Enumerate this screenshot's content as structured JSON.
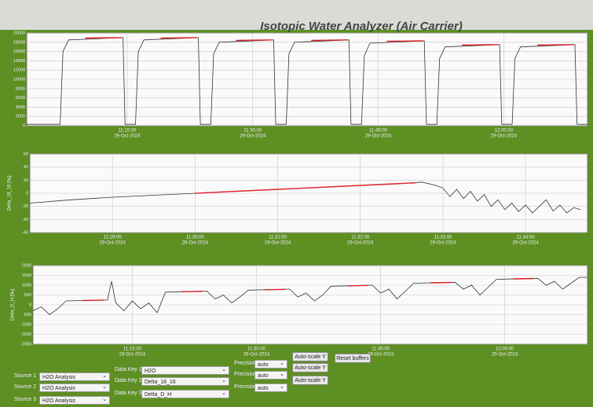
{
  "title": "Isotopic Water Analyzer (Air Carrier)",
  "chart_data": [
    {
      "type": "line",
      "ylim": [
        0,
        20000
      ],
      "yticks": [
        0,
        2000,
        4000,
        6000,
        8000,
        10000,
        12000,
        14000,
        16000,
        18000,
        20000
      ],
      "xlim": [
        "11:03:00",
        "12:10:00"
      ],
      "xticks": [
        "11:15:00",
        "11:30:00",
        "11:45:00",
        "12:00:00"
      ],
      "xtick_dates": [
        "29-Oct-2024",
        "29-Oct-2024",
        "29-Oct-2024",
        "29-Oct-2024"
      ],
      "grid": true,
      "series": [
        {
          "color": "#333333",
          "x": [
            "11:03:00",
            "11:07:00",
            "11:07:20",
            "11:08:00",
            "11:14:30",
            "11:14:45",
            "11:16:00",
            "11:16:20",
            "11:17:00",
            "11:23:30",
            "11:23:45",
            "11:25:00",
            "11:25:20",
            "11:26:00",
            "11:32:30",
            "11:32:45",
            "11:34:00",
            "11:34:20",
            "11:35:00",
            "11:41:30",
            "11:41:45",
            "11:43:00",
            "11:43:20",
            "11:44:00",
            "11:50:30",
            "11:50:45",
            "11:52:00",
            "11:52:20",
            "11:53:00",
            "11:59:30",
            "11:59:45",
            "12:01:00",
            "12:01:20",
            "12:02:00",
            "12:08:30",
            "12:08:45",
            "12:10:00"
          ],
          "values": [
            300,
            300,
            16000,
            18500,
            19000,
            300,
            300,
            16000,
            18500,
            19000,
            300,
            300,
            15500,
            18000,
            18500,
            300,
            300,
            15500,
            18000,
            18500,
            300,
            300,
            15000,
            17800,
            18300,
            300,
            300,
            14500,
            17000,
            17500,
            300,
            300,
            14500,
            17000,
            17500,
            300,
            300
          ]
        },
        {
          "color": "#e0202a",
          "x": [
            "11:10:00",
            "11:14:20",
            "11:14:25",
            "11:19:00",
            "11:23:20",
            "11:23:25",
            "11:28:00",
            "11:32:20",
            "11:32:25",
            "11:37:00",
            "11:41:20",
            "11:41:25",
            "11:46:00",
            "11:50:20",
            "11:50:25",
            "11:55:00",
            "11:59:20",
            "11:59:25",
            "12:04:00",
            "12:08:20",
            "12:08:25"
          ],
          "values": [
            18900,
            19000,
            null,
            18900,
            19000,
            null,
            18400,
            18500,
            null,
            18400,
            18500,
            null,
            18200,
            18300,
            null,
            17400,
            17500,
            null,
            17400,
            17500,
            null
          ]
        }
      ]
    },
    {
      "type": "line",
      "ylabel": "Delta_18_16 [‰]",
      "ylim": [
        -60,
        60
      ],
      "yticks": [
        -60,
        -40,
        -20,
        0,
        20,
        40,
        60
      ],
      "xlim": [
        "11:28:00",
        "11:34:45"
      ],
      "xticks": [
        "11:29:00",
        "11:30:00",
        "11:31:00",
        "11:32:00",
        "11:33:00",
        "11:34:00"
      ],
      "xtick_dates": [
        "29-Oct-2024",
        "29-Oct-2024",
        "29-Oct-2024",
        "29-Oct-2024",
        "29-Oct-2024",
        "29-Oct-2024"
      ],
      "grid": true,
      "series": [
        {
          "color": "#333333",
          "x": [
            "11:28:00",
            "11:28:30",
            "11:29:00",
            "11:29:30",
            "11:30:00",
            "11:30:30",
            "11:31:00",
            "11:31:30",
            "11:32:00",
            "11:32:30",
            "11:32:45",
            "11:32:55",
            "11:33:00",
            "11:33:05",
            "11:33:10",
            "11:33:15",
            "11:33:20",
            "11:33:25",
            "11:33:30",
            "11:33:35",
            "11:33:40",
            "11:33:45",
            "11:33:50",
            "11:33:55",
            "11:34:00",
            "11:34:05",
            "11:34:10",
            "11:34:15",
            "11:34:20",
            "11:34:25",
            "11:34:30",
            "11:34:35",
            "11:34:40"
          ],
          "values": [
            -15,
            -10,
            -6,
            -3,
            0,
            3,
            6,
            9,
            12,
            15,
            17,
            12,
            8,
            -5,
            6,
            -8,
            3,
            -12,
            -2,
            -20,
            -10,
            -25,
            -15,
            -28,
            -18,
            -30,
            -20,
            -10,
            -27,
            -18,
            -30,
            -22,
            -25
          ]
        },
        {
          "color": "#e0202a",
          "x": [
            "11:30:00",
            "11:31:00",
            "11:32:00",
            "11:32:40"
          ],
          "values": [
            0,
            6,
            12,
            16
          ]
        }
      ]
    },
    {
      "type": "line",
      "ylabel": "Delta_D_H [‰]",
      "ylim": [
        -2000,
        2000
      ],
      "yticks": [
        -2000,
        -1500,
        -1000,
        -500,
        0,
        500,
        1000,
        1500,
        2000
      ],
      "xlim": [
        "11:03:00",
        "12:10:00"
      ],
      "xticks": [
        "11:15:00",
        "11:30:00",
        "11:45:00",
        "12:00:00"
      ],
      "xtick_dates": [
        "29-Oct-2024",
        "29-Oct-2024",
        "29-Oct-2024",
        "29-Oct-2024"
      ],
      "grid": true,
      "series": [
        {
          "color": "#333333",
          "x": [
            "11:03:00",
            "11:04:00",
            "11:05:00",
            "11:06:00",
            "11:07:00",
            "11:12:00",
            "11:12:30",
            "11:13:00",
            "11:14:00",
            "11:15:00",
            "11:16:00",
            "11:17:00",
            "11:18:00",
            "11:19:00",
            "11:24:00",
            "11:25:00",
            "11:26:00",
            "11:27:00",
            "11:28:00",
            "11:29:00",
            "11:34:00",
            "11:35:00",
            "11:36:00",
            "11:37:00",
            "11:38:00",
            "11:39:00",
            "11:44:00",
            "11:45:00",
            "11:46:00",
            "11:47:00",
            "11:48:00",
            "11:49:00",
            "11:54:00",
            "11:55:00",
            "11:56:00",
            "11:57:00",
            "11:58:00",
            "11:59:00",
            "12:04:00",
            "12:05:00",
            "12:06:00",
            "12:07:00",
            "12:08:00",
            "12:09:00",
            "12:10:00"
          ],
          "values": [
            -300,
            -100,
            -500,
            -200,
            200,
            250,
            1200,
            100,
            -300,
            200,
            -200,
            100,
            -400,
            650,
            700,
            300,
            500,
            100,
            400,
            750,
            800,
            400,
            600,
            200,
            500,
            950,
            1000,
            600,
            800,
            300,
            700,
            1100,
            1150,
            800,
            1000,
            500,
            900,
            1300,
            1350,
            1000,
            1200,
            800,
            1100,
            1400,
            1400
          ]
        },
        {
          "color": "#e0202a",
          "x": [
            "11:09:00",
            "11:11:30",
            "11:11:35",
            "11:21:00",
            "11:23:30",
            "11:23:35",
            "11:31:00",
            "11:33:30",
            "11:33:35",
            "11:41:00",
            "11:43:30",
            "11:43:35",
            "11:51:00",
            "11:53:30",
            "11:53:35",
            "12:01:00",
            "12:03:30",
            "12:03:35"
          ],
          "values": [
            220,
            240,
            null,
            670,
            690,
            null,
            770,
            790,
            null,
            970,
            990,
            null,
            1120,
            1140,
            null,
            1320,
            1340,
            null
          ]
        }
      ]
    }
  ],
  "controls": {
    "sources": [
      {
        "label": "Source 1",
        "value": "H2O Analysis"
      },
      {
        "label": "Source 2",
        "value": "H2O Analysis"
      },
      {
        "label": "Source 3",
        "value": "H2O Analysis"
      }
    ],
    "data_keys": [
      {
        "label": "Data Key 1",
        "value": "H2O"
      },
      {
        "label": "Data Key 2",
        "value": "Delta_18_16"
      },
      {
        "label": "Data Key 3",
        "value": "Delta_D_H"
      }
    ],
    "precision": [
      {
        "label": "Precision",
        "value": "auto"
      },
      {
        "label": "Precision",
        "value": "auto"
      },
      {
        "label": "Precision",
        "value": "auto"
      }
    ],
    "autoscale": [
      "Auto-scale Y",
      "Auto-scale Y",
      "Auto-scale Y"
    ],
    "reset": "Reset buffers"
  }
}
